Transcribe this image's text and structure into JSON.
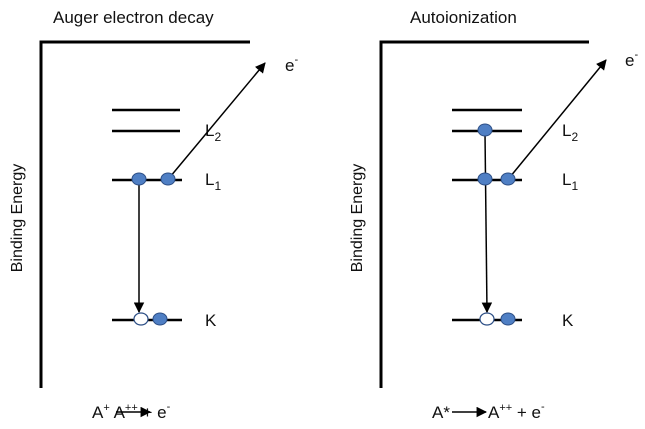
{
  "colors": {
    "line": "#000000",
    "electron_fill": "#4f7fc4",
    "electron_stroke": "#2d4f86",
    "hole_fill": "#ffffff"
  },
  "panels": [
    {
      "title": "Auger electron decay",
      "axis_label": "Binding Energy",
      "levels": {
        "L2": {
          "letter": "L",
          "sub": "2"
        },
        "L1": {
          "letter": "L",
          "sub": "1"
        },
        "K": {
          "letter": "K"
        }
      },
      "electron_label": {
        "base": "e",
        "sup": "-"
      },
      "equation": {
        "lhs": "A",
        "lhs_sup": "+",
        "rhs": "A",
        "rhs_sup": "++",
        "tail": " + e",
        "tail_sup": "-"
      }
    },
    {
      "title": "Autoionization",
      "axis_label": "Binding Energy",
      "levels": {
        "L2": {
          "letter": "L",
          "sub": "2"
        },
        "L1": {
          "letter": "L",
          "sub": "1"
        },
        "K": {
          "letter": "K"
        }
      },
      "electron_label": {
        "base": "e",
        "sup": "-"
      },
      "equation": {
        "lhs": "A*",
        "lhs_sup": "",
        "rhs": "A",
        "rhs_sup": "++",
        "tail": " + e",
        "tail_sup": "-"
      }
    }
  ]
}
